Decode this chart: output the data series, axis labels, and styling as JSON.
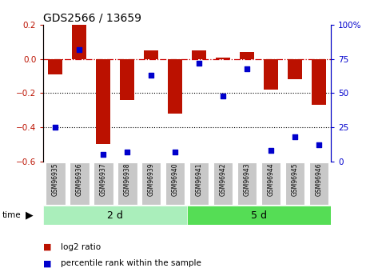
{
  "title": "GDS2566 / 13659",
  "samples": [
    "GSM96935",
    "GSM96936",
    "GSM96937",
    "GSM96938",
    "GSM96939",
    "GSM96940",
    "GSM96941",
    "GSM96942",
    "GSM96943",
    "GSM96944",
    "GSM96945",
    "GSM96946"
  ],
  "log2_ratio": [
    -0.09,
    0.2,
    -0.5,
    -0.24,
    0.05,
    -0.32,
    0.05,
    0.01,
    0.04,
    -0.18,
    -0.12,
    -0.27
  ],
  "percentile_rank": [
    25,
    82,
    5,
    7,
    63,
    7,
    72,
    48,
    68,
    8,
    18,
    12
  ],
  "group1_label": "2 d",
  "group2_label": "5 d",
  "group1_count": 6,
  "group2_count": 6,
  "bar_color": "#BB1100",
  "dot_color": "#0000CC",
  "ylim_left": [
    -0.6,
    0.2
  ],
  "ylim_right": [
    0,
    100
  ],
  "yticks_left": [
    -0.6,
    -0.4,
    -0.2,
    0.0,
    0.2
  ],
  "yticks_right": [
    0,
    25,
    50,
    75,
    100
  ],
  "hline_dashed_color": "#CC0000",
  "hlines_dotted_vals": [
    -0.2,
    -0.4
  ],
  "group1_color": "#AAEEBB",
  "group2_color": "#55DD55",
  "tick_bg_color": "#C8C8C8",
  "legend_red_label": "log2 ratio",
  "legend_blue_label": "percentile rank within the sample",
  "fig_width": 4.73,
  "fig_height": 3.45,
  "dpi": 100
}
